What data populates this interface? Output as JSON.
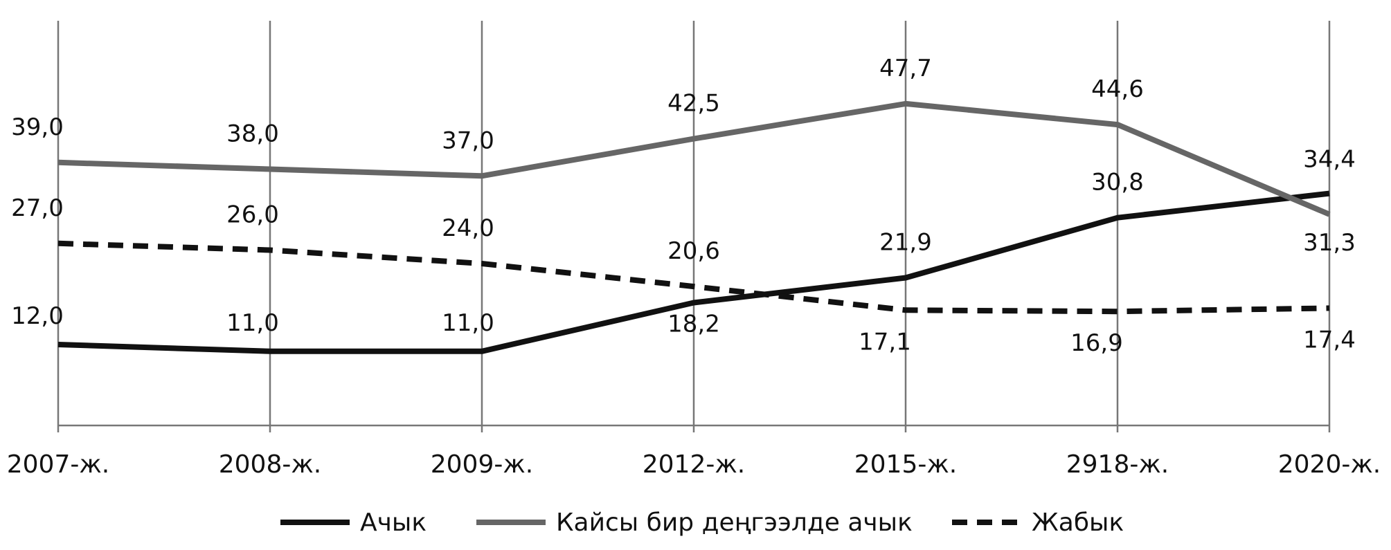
{
  "chart_data": {
    "type": "line",
    "categories": [
      "2007-ж.",
      "2008-ж.",
      "2009-ж.",
      "2012-ж.",
      "2015-ж.",
      "2918-ж.",
      "2020-ж."
    ],
    "series": [
      {
        "name": "Ачык",
        "values": [
          12.0,
          11.0,
          11.0,
          18.2,
          21.9,
          30.8,
          34.4
        ],
        "labels": [
          "12,0",
          "11,0",
          "11,0",
          "18,2",
          "21,9",
          "30,8",
          "34,4"
        ],
        "color": "#111111",
        "dash": "solid"
      },
      {
        "name": "Кайсы бир деңгээлде ачык",
        "values": [
          39.0,
          38.0,
          37.0,
          42.5,
          47.7,
          44.6,
          31.3
        ],
        "labels": [
          "39,0",
          "38,0",
          "37,0",
          "42,5",
          "47,7",
          "44,6",
          "31,3"
        ],
        "color": "#666666",
        "dash": "solid"
      },
      {
        "name": "Жабык",
        "values": [
          27.0,
          26.0,
          24.0,
          20.6,
          17.1,
          16.9,
          17.4
        ],
        "labels": [
          "27,0",
          "26,0",
          "24,0",
          "20,6",
          "17,1",
          "16,9",
          "17,4"
        ],
        "color": "#111111",
        "dash": "dashed"
      }
    ],
    "ylim": [
      0,
      60
    ],
    "grid": "vertical",
    "legend": "bottom",
    "title": "",
    "xlabel": "",
    "ylabel": ""
  }
}
